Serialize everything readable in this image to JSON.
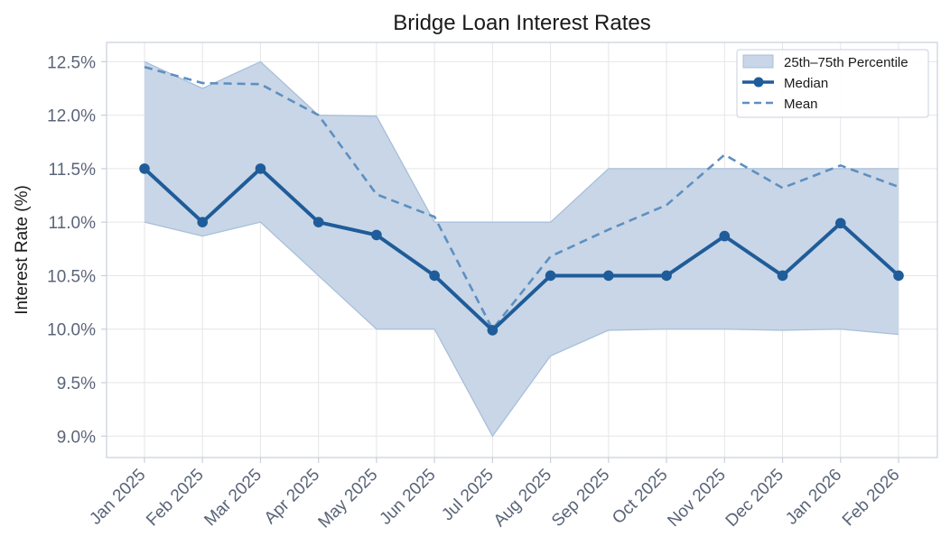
{
  "chart_data": {
    "type": "line",
    "title": "Bridge Loan Interest Rates",
    "xlabel": "",
    "ylabel": "Interest Rate (%)",
    "ylim": [
      8.8,
      12.68
    ],
    "y_ticks": [
      9.0,
      9.5,
      10.0,
      10.5,
      11.0,
      11.5,
      12.0,
      12.5
    ],
    "y_tick_labels": [
      "9.0%",
      "9.5%",
      "10.0%",
      "10.5%",
      "11.0%",
      "11.5%",
      "12.0%",
      "12.5%"
    ],
    "grid": true,
    "legend_position": "top-right",
    "categories": [
      "Jan 2025",
      "Feb 2025",
      "Mar 2025",
      "Apr 2025",
      "May 2025",
      "Jun 2025",
      "Jul 2025",
      "Aug 2025",
      "Sep 2025",
      "Oct 2025",
      "Nov 2025",
      "Dec 2025",
      "Jan 2026",
      "Feb 2026"
    ],
    "band": {
      "name": "25th–75th Percentile",
      "lower": [
        11.0,
        10.87,
        11.0,
        10.5,
        10.0,
        10.0,
        9.0,
        9.75,
        9.99,
        10.0,
        10.0,
        9.99,
        10.0,
        9.95
      ],
      "upper": [
        12.5,
        12.25,
        12.5,
        12.0,
        11.99,
        11.0,
        11.0,
        11.0,
        11.5,
        11.5,
        11.5,
        11.5,
        11.5,
        11.5
      ],
      "color": "#c8d6e7",
      "edge_color": "#a8bfda"
    },
    "series": [
      {
        "name": "Median",
        "values": [
          11.5,
          11.0,
          11.5,
          11.0,
          10.88,
          10.5,
          9.99,
          10.5,
          10.5,
          10.5,
          10.87,
          10.5,
          10.99,
          10.5
        ],
        "color": "#1f5c99",
        "style": "solid-markers"
      },
      {
        "name": "Mean",
        "values": [
          12.45,
          12.3,
          12.29,
          12.0,
          11.26,
          11.05,
          10.0,
          10.68,
          10.93,
          11.16,
          11.63,
          11.32,
          11.53,
          11.33
        ],
        "color": "#5e8fc0",
        "style": "dashed"
      }
    ]
  },
  "colors": {
    "grid": "#e6e6e6",
    "axis": "#c8d0dc",
    "tick_text": "#5a6478"
  }
}
